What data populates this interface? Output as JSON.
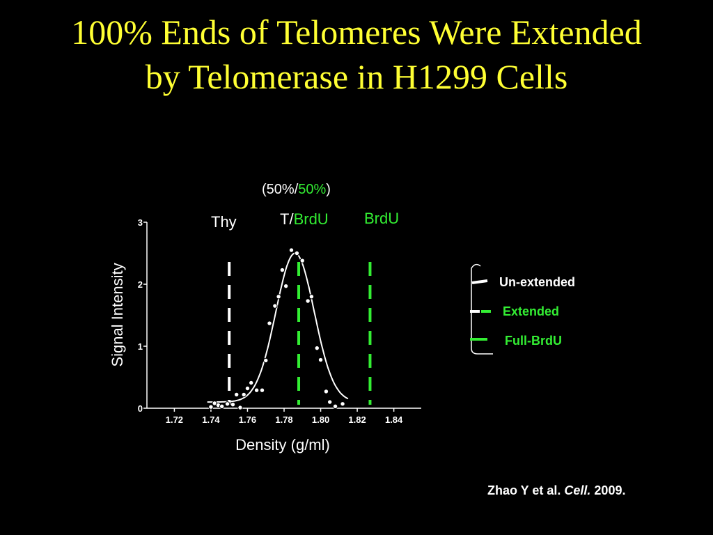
{
  "title": {
    "line1": "100% Ends of Telomeres Were Extended",
    "line2": "by Telomerase in H1299 Cells"
  },
  "colors": {
    "title": "#ffff33",
    "green": "#33ee33",
    "white": "#ffffff",
    "background": "#000000"
  },
  "chart_data": {
    "type": "scatter",
    "xlabel": "Density (g/ml)",
    "ylabel": "Signal Intensity",
    "xlim": [
      1.705,
      1.855
    ],
    "ylim": [
      0,
      3
    ],
    "x_ticks": [
      "1.72",
      "1.74",
      "1.76",
      "1.78",
      "1.80",
      "1.82",
      "1.84"
    ],
    "y_ticks": [
      "0",
      "1",
      "2",
      "3"
    ],
    "grid": false,
    "points": [
      {
        "x": 1.74,
        "y": 0.02
      },
      {
        "x": 1.742,
        "y": 0.08
      },
      {
        "x": 1.744,
        "y": 0.05
      },
      {
        "x": 1.746,
        "y": 0.03
      },
      {
        "x": 1.749,
        "y": 0.07
      },
      {
        "x": 1.752,
        "y": 0.06
      },
      {
        "x": 1.754,
        "y": 0.22
      },
      {
        "x": 1.756,
        "y": 0.01
      },
      {
        "x": 1.758,
        "y": 0.22
      },
      {
        "x": 1.76,
        "y": 0.32
      },
      {
        "x": 1.762,
        "y": 0.41
      },
      {
        "x": 1.765,
        "y": 0.29
      },
      {
        "x": 1.768,
        "y": 0.29
      },
      {
        "x": 1.77,
        "y": 0.77
      },
      {
        "x": 1.772,
        "y": 1.37
      },
      {
        "x": 1.775,
        "y": 1.65
      },
      {
        "x": 1.777,
        "y": 1.8
      },
      {
        "x": 1.779,
        "y": 2.23
      },
      {
        "x": 1.781,
        "y": 1.97
      },
      {
        "x": 1.784,
        "y": 2.55
      },
      {
        "x": 1.787,
        "y": 2.5
      },
      {
        "x": 1.79,
        "y": 2.38
      },
      {
        "x": 1.793,
        "y": 1.73
      },
      {
        "x": 1.795,
        "y": 1.8
      },
      {
        "x": 1.798,
        "y": 0.97
      },
      {
        "x": 1.8,
        "y": 0.78
      },
      {
        "x": 1.803,
        "y": 0.27
      },
      {
        "x": 1.805,
        "y": 0.1
      },
      {
        "x": 1.808,
        "y": 0.03
      },
      {
        "x": 1.812,
        "y": 0.07
      }
    ],
    "fit": {
      "baseline": 0.1,
      "peak": 2.5,
      "center": 1.786,
      "sigma": 0.0105
    },
    "markers": [
      {
        "label": "Thy",
        "x": 1.75,
        "color": "#ffffff"
      },
      {
        "label": "T/BrdU",
        "x": 1.788,
        "color": "#33ee33"
      },
      {
        "label": "BrdU",
        "x": 1.827,
        "color": "#33ee33"
      }
    ],
    "annotations": {
      "hybrid_ratio_open": "(",
      "hybrid_ratio_a": "50%/",
      "hybrid_ratio_b": "50%",
      "hybrid_ratio_close": ")",
      "thy": "Thy",
      "t_part": "T/",
      "brdu_part": "BrdU",
      "brdu": "BrdU"
    }
  },
  "legend": {
    "items": [
      {
        "label": "Un-extended",
        "color": "#ffffff"
      },
      {
        "label": "Extended",
        "color": "#33ee33"
      },
      {
        "label": "Full-BrdU",
        "color": "#33ee33"
      }
    ]
  },
  "citation": {
    "authors": "Zhao Y et al.",
    "journal": "Cell.",
    "year": "2009."
  }
}
